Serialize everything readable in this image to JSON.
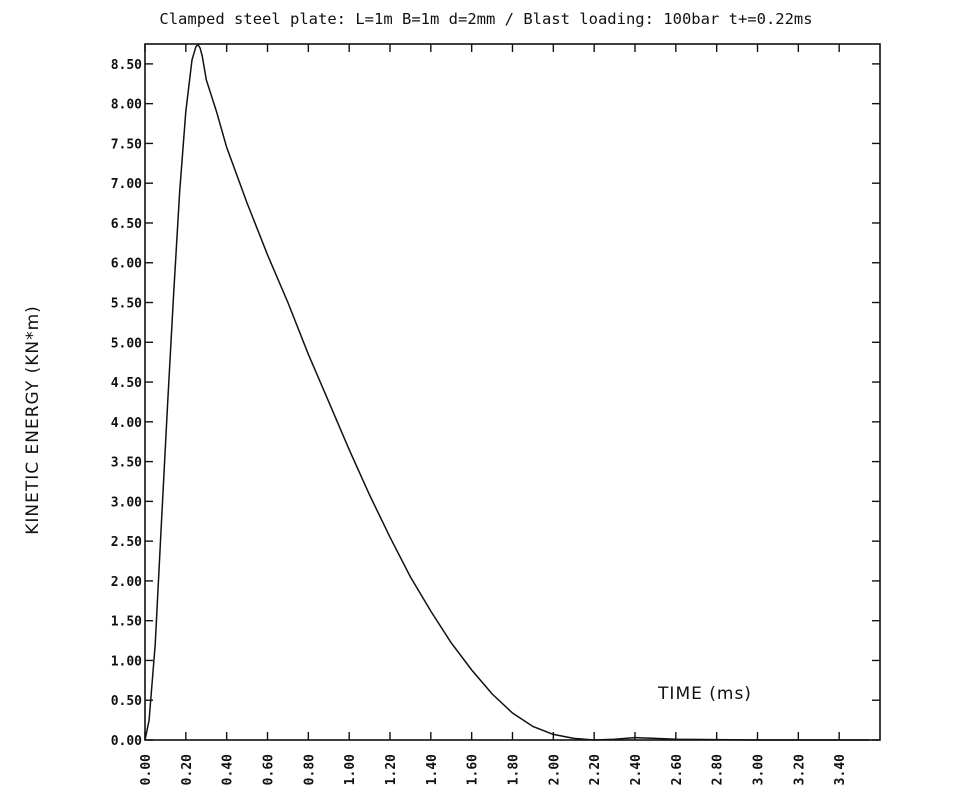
{
  "chart_data": {
    "type": "line",
    "title": "Clamped steel plate: L=1m B=1m d=2mm / Blast loading: 100bar t+=0.22ms",
    "xlabel": "TIME (ms)",
    "ylabel": "KINETIC ENERGY (KN*m)",
    "xlim": [
      0,
      3.6
    ],
    "ylim": [
      0,
      8.75
    ],
    "x_tick_labels": [
      "0.00",
      "0.20",
      "0.40",
      "0.60",
      "0.80",
      "1.00",
      "1.20",
      "1.40",
      "1.60",
      "1.80",
      "2.00",
      "2.20",
      "2.40",
      "2.60",
      "2.80",
      "3.00",
      "3.20",
      "3.40"
    ],
    "y_tick_labels": [
      "0.00",
      "0.50",
      "1.00",
      "1.50",
      "2.00",
      "2.50",
      "3.00",
      "3.50",
      "4.00",
      "4.50",
      "5.00",
      "5.50",
      "6.00",
      "6.50",
      "7.00",
      "7.50",
      "8.00",
      "8.50"
    ],
    "grid": false,
    "series": [
      {
        "x": [
          0.0,
          0.02,
          0.05,
          0.08,
          0.11,
          0.14,
          0.17,
          0.2,
          0.23,
          0.25,
          0.26,
          0.27,
          0.28,
          0.3,
          0.35,
          0.4,
          0.5,
          0.6,
          0.7,
          0.8,
          0.9,
          1.0,
          1.1,
          1.2,
          1.3,
          1.4,
          1.5,
          1.6,
          1.7,
          1.8,
          1.9,
          2.0,
          2.1,
          2.2,
          2.3,
          2.4,
          2.5,
          2.6,
          2.8,
          3.0,
          3.2,
          3.4,
          3.55
        ],
        "y": [
          0.0,
          0.25,
          1.2,
          2.7,
          4.2,
          5.6,
          6.9,
          7.9,
          8.55,
          8.72,
          8.74,
          8.7,
          8.6,
          8.3,
          7.9,
          7.45,
          6.75,
          6.1,
          5.5,
          4.85,
          4.25,
          3.65,
          3.08,
          2.55,
          2.05,
          1.62,
          1.22,
          0.88,
          0.58,
          0.34,
          0.17,
          0.07,
          0.02,
          0.0,
          0.01,
          0.03,
          0.02,
          0.01,
          0.005,
          0.0,
          0.0,
          0.0,
          0.0
        ]
      }
    ]
  }
}
